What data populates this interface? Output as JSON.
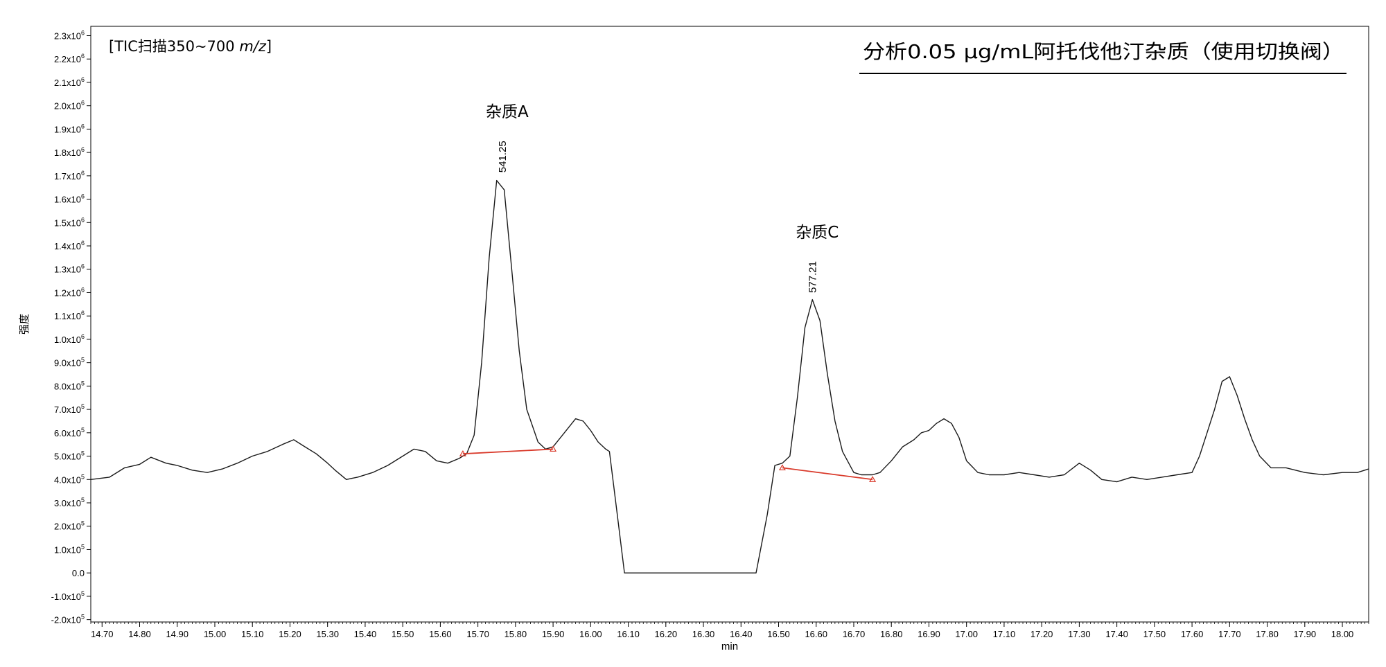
{
  "chart_data": {
    "type": "line",
    "title": "分析0.05 μg/mL阿托伐他汀杂质（使用切换阀）",
    "subtitle": "[TIC扫描350~700 m/z]",
    "subtitle_prefix": "[TIC扫描350~700 ",
    "subtitle_italic": "m/z",
    "subtitle_suffix": "]",
    "xlabel": "min",
    "ylabel": "强度",
    "xlim": [
      14.67,
      18.07
    ],
    "ylim": [
      -210000,
      2340000
    ],
    "grid": false,
    "legend": "none",
    "line_color": "#1a1a1a",
    "baseline_color": "#d93a2b",
    "x_ticks": [
      14.7,
      14.8,
      14.9,
      15.0,
      15.1,
      15.2,
      15.3,
      15.4,
      15.5,
      15.6,
      15.7,
      15.8,
      15.9,
      16.0,
      16.1,
      16.2,
      16.3,
      16.4,
      16.5,
      16.6,
      16.7,
      16.8,
      16.9,
      17.0,
      17.1,
      17.2,
      17.3,
      17.4,
      17.5,
      17.6,
      17.7,
      17.8,
      17.9,
      18.0
    ],
    "x_tick_labels": [
      "14.70",
      "14.80",
      "14.90",
      "15.00",
      "15.10",
      "15.20",
      "15.30",
      "15.40",
      "15.50",
      "15.60",
      "15.70",
      "15.80",
      "15.90",
      "16.00",
      "16.10",
      "16.20",
      "16.30",
      "16.40",
      "16.50",
      "16.60",
      "16.70",
      "16.80",
      "16.90",
      "17.00",
      "17.10",
      "17.20",
      "17.30",
      "17.40",
      "17.50",
      "17.60",
      "17.70",
      "17.80",
      "17.90",
      "18.00"
    ],
    "y_ticks": [
      {
        "value": 2300000,
        "mant": "2.3x10",
        "exp": "6"
      },
      {
        "value": 2200000,
        "mant": "2.2x10",
        "exp": "6"
      },
      {
        "value": 2100000,
        "mant": "2.1x10",
        "exp": "6"
      },
      {
        "value": 2000000,
        "mant": "2.0x10",
        "exp": "6"
      },
      {
        "value": 1900000,
        "mant": "1.9x10",
        "exp": "6"
      },
      {
        "value": 1800000,
        "mant": "1.8x10",
        "exp": "6"
      },
      {
        "value": 1700000,
        "mant": "1.7x10",
        "exp": "6"
      },
      {
        "value": 1600000,
        "mant": "1.6x10",
        "exp": "6"
      },
      {
        "value": 1500000,
        "mant": "1.5x10",
        "exp": "6"
      },
      {
        "value": 1400000,
        "mant": "1.4x10",
        "exp": "6"
      },
      {
        "value": 1300000,
        "mant": "1.3x10",
        "exp": "6"
      },
      {
        "value": 1200000,
        "mant": "1.2x10",
        "exp": "6"
      },
      {
        "value": 1100000,
        "mant": "1.1x10",
        "exp": "6"
      },
      {
        "value": 1000000,
        "mant": "1.0x10",
        "exp": "6"
      },
      {
        "value": 900000,
        "mant": "9.0x10",
        "exp": "5"
      },
      {
        "value": 800000,
        "mant": "8.0x10",
        "exp": "5"
      },
      {
        "value": 700000,
        "mant": "7.0x10",
        "exp": "5"
      },
      {
        "value": 600000,
        "mant": "6.0x10",
        "exp": "5"
      },
      {
        "value": 500000,
        "mant": "5.0x10",
        "exp": "5"
      },
      {
        "value": 400000,
        "mant": "4.0x10",
        "exp": "5"
      },
      {
        "value": 300000,
        "mant": "3.0x10",
        "exp": "5"
      },
      {
        "value": 200000,
        "mant": "2.0x10",
        "exp": "5"
      },
      {
        "value": 100000,
        "mant": "1.0x10",
        "exp": "5"
      },
      {
        "value": 0,
        "mant": "0.0",
        "exp": ""
      },
      {
        "value": -100000,
        "mant": "-1.0x10",
        "exp": "5"
      },
      {
        "value": -200000,
        "mant": "-2.0x10",
        "exp": "5"
      }
    ],
    "series": [
      {
        "x": [
          14.67,
          14.72,
          14.76,
          14.8,
          14.83,
          14.87,
          14.9,
          14.94,
          14.98,
          15.02,
          15.06,
          15.1,
          15.14,
          15.18,
          15.21,
          15.24,
          15.27,
          15.3,
          15.32,
          15.35,
          15.38,
          15.42,
          15.46,
          15.5,
          15.53,
          15.56,
          15.59,
          15.62,
          15.65,
          15.67,
          15.69,
          15.71,
          15.73,
          15.75,
          15.77,
          15.79,
          15.81,
          15.83,
          15.86,
          15.88,
          15.9,
          15.93,
          15.96,
          15.98,
          16.0,
          16.02,
          16.04,
          16.05,
          16.07,
          16.09,
          16.12,
          16.16,
          16.24,
          16.32,
          16.4,
          16.44,
          16.47,
          16.49,
          16.51,
          16.53,
          16.55,
          16.57,
          16.59,
          16.61,
          16.63,
          16.65,
          16.67,
          16.7,
          16.72,
          16.75,
          16.77,
          16.8,
          16.83,
          16.86,
          16.88,
          16.9,
          16.92,
          16.94,
          16.96,
          16.98,
          17.0,
          17.03,
          17.06,
          17.1,
          17.14,
          17.18,
          17.22,
          17.26,
          17.3,
          17.33,
          17.36,
          17.4,
          17.44,
          17.48,
          17.52,
          17.56,
          17.6,
          17.62,
          17.64,
          17.66,
          17.68,
          17.7,
          17.72,
          17.74,
          17.76,
          17.78,
          17.81,
          17.85,
          17.9,
          17.95,
          18.0,
          18.04,
          18.07
        ],
        "y": [
          400000,
          410000,
          450000,
          465000,
          495000,
          470000,
          460000,
          440000,
          430000,
          445000,
          470000,
          500000,
          520000,
          550000,
          570000,
          540000,
          510000,
          470000,
          440000,
          400000,
          410000,
          430000,
          460000,
          500000,
          530000,
          520000,
          480000,
          470000,
          490000,
          510000,
          590000,
          900000,
          1350000,
          1680000,
          1640000,
          1300000,
          950000,
          700000,
          560000,
          530000,
          540000,
          600000,
          660000,
          650000,
          610000,
          560000,
          530000,
          520000,
          260000,
          0,
          0,
          0,
          0,
          0,
          0,
          0,
          250000,
          460000,
          470000,
          500000,
          750000,
          1050000,
          1170000,
          1080000,
          850000,
          650000,
          520000,
          430000,
          420000,
          420000,
          430000,
          480000,
          540000,
          570000,
          600000,
          610000,
          640000,
          660000,
          640000,
          580000,
          480000,
          430000,
          420000,
          420000,
          430000,
          420000,
          410000,
          420000,
          470000,
          440000,
          400000,
          390000,
          410000,
          400000,
          410000,
          420000,
          430000,
          500000,
          600000,
          700000,
          820000,
          840000,
          760000,
          660000,
          570000,
          500000,
          450000,
          450000,
          430000,
          420000,
          430000,
          430000,
          445000
        ]
      }
    ],
    "peaks": [
      {
        "label": "杂质A",
        "rt": "541.25",
        "x": 15.765,
        "y": 1690000,
        "baseline": [
          [
            15.66,
            510000
          ],
          [
            15.9,
            530000
          ]
        ]
      },
      {
        "label": "杂质C",
        "rt": "577.21",
        "x": 16.59,
        "y": 1175000,
        "baseline": [
          [
            16.51,
            450000
          ],
          [
            16.75,
            400000
          ]
        ]
      }
    ]
  }
}
